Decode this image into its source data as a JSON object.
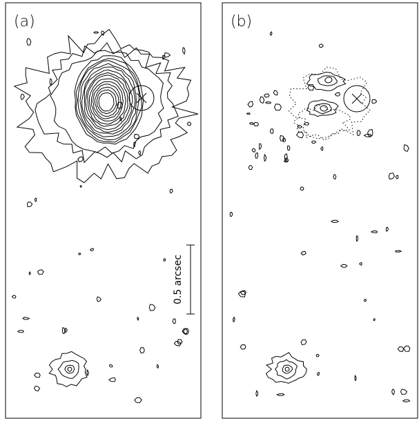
{
  "panels": [
    {
      "label": "(a)"
    },
    {
      "label": "(b)"
    }
  ],
  "scale_bar": {
    "label": "0.5 arcsec"
  }
}
